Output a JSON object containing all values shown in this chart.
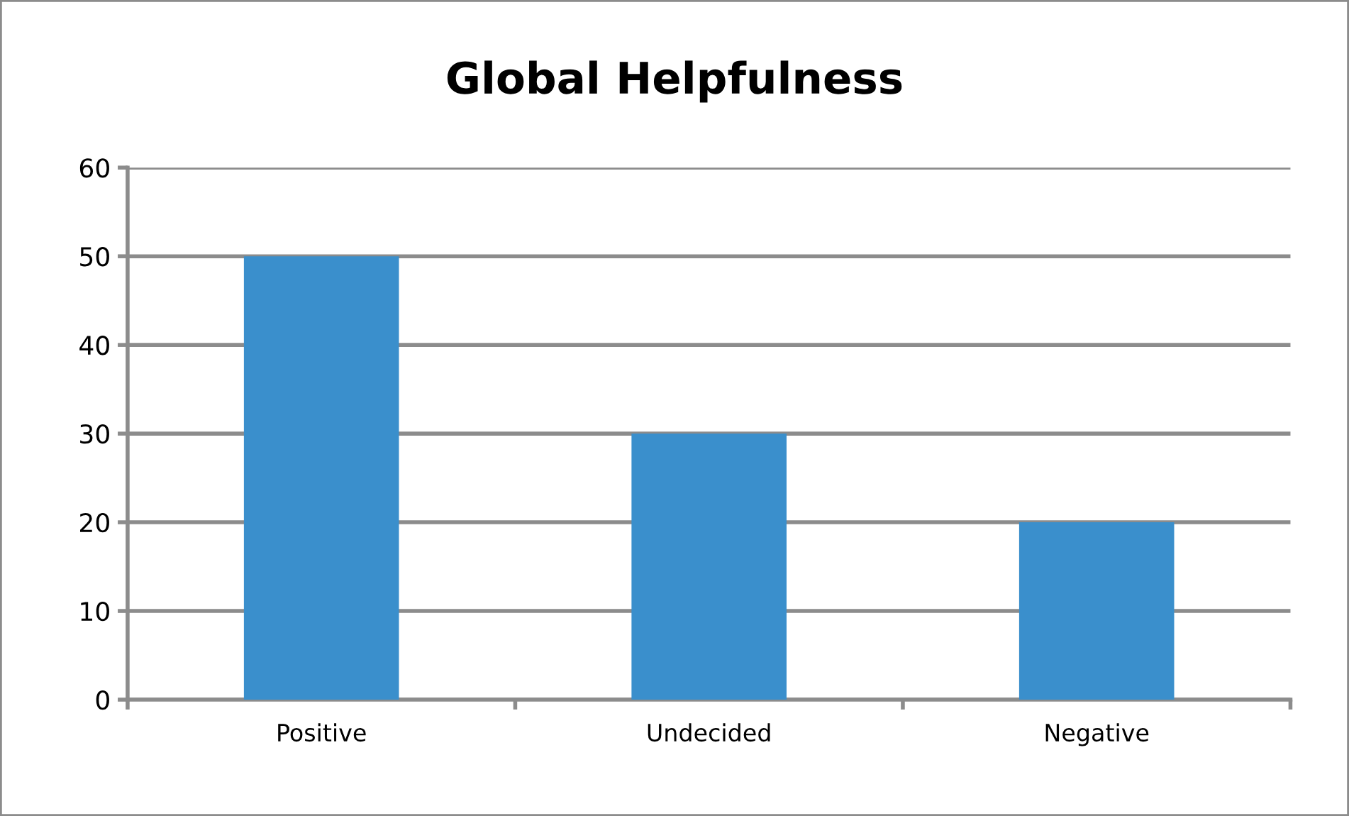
{
  "chart_data": {
    "type": "bar",
    "title": "Global Helpfulness",
    "categories": [
      "Positive",
      "Undecided",
      "Negative"
    ],
    "values": [
      50,
      30,
      20
    ],
    "color": "#3a8fcc",
    "ylim": [
      0,
      60
    ],
    "yticks": [
      0,
      10,
      20,
      30,
      40,
      50,
      60
    ],
    "grid": "y",
    "legend": false
  }
}
